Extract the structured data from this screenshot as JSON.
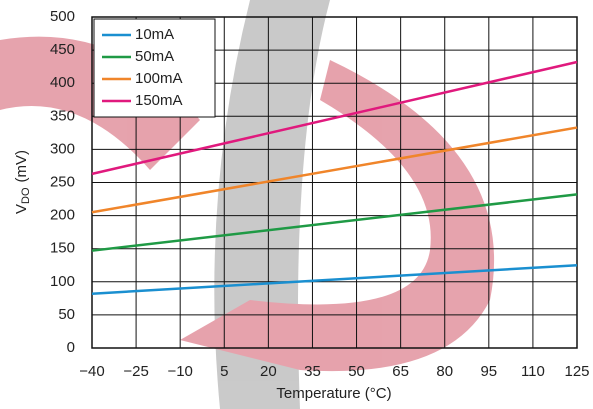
{
  "chart_data": {
    "type": "line",
    "xlabel": "Temperature (°C)",
    "ylabel_parts": [
      "V",
      "DO",
      "(mV)"
    ],
    "x": [
      -40,
      125
    ],
    "series": [
      {
        "name": "10mA",
        "color": "#1a8fd0",
        "values": [
          82,
          125
        ]
      },
      {
        "name": "50mA",
        "color": "#1f9a45",
        "values": [
          147,
          232
        ]
      },
      {
        "name": "100mA",
        "color": "#f0852a",
        "values": [
          205,
          333
        ]
      },
      {
        "name": "150mA",
        "color": "#e0197d",
        "values": [
          263,
          432
        ]
      }
    ],
    "xlim": [
      -40,
      125
    ],
    "xticks": [
      {
        "value": -40,
        "label": "−40"
      },
      {
        "value": -25,
        "label": "−25"
      },
      {
        "value": -10,
        "label": "−10"
      },
      5,
      20,
      35,
      50,
      65,
      80,
      95,
      110,
      125
    ],
    "ylim": [
      0,
      500
    ],
    "yticks": [
      0,
      50,
      100,
      150,
      200,
      250,
      300,
      350,
      400,
      450,
      500
    ],
    "grid": true,
    "legend": "upper-left"
  }
}
